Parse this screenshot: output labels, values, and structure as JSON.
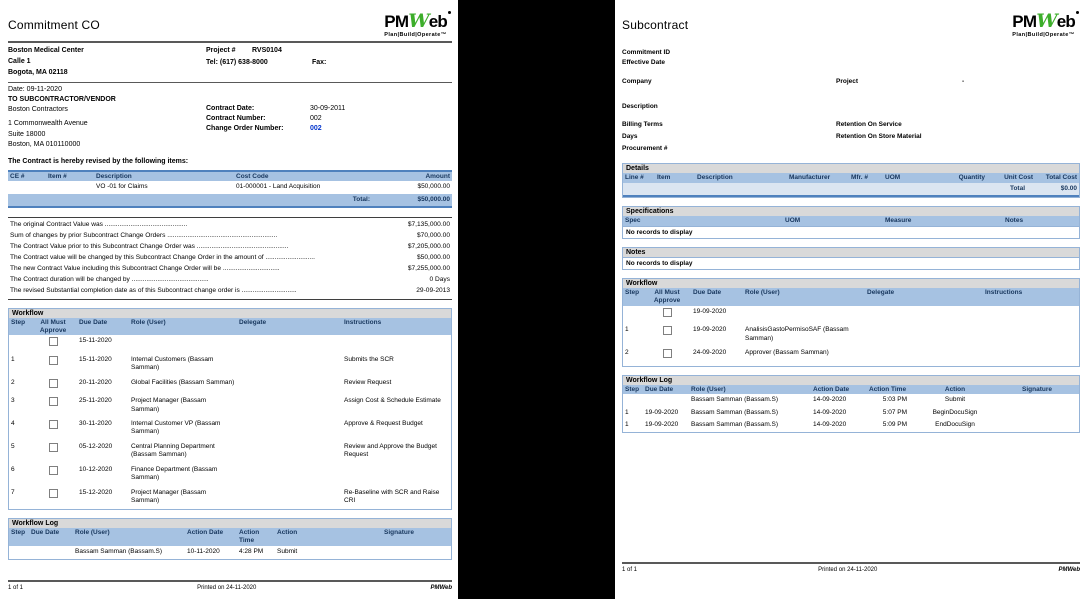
{
  "logo": {
    "pm": "PM",
    "w": "W",
    "eb": "eb",
    "tagline": "Plan|Build|Operate™"
  },
  "left_page": {
    "title": "Commitment CO",
    "owner": {
      "name": "Boston Medical Center",
      "address1": "Calle 1",
      "address2": "Bogota, MA 02118"
    },
    "project": {
      "label": "Project #",
      "number": "RVS0104",
      "tel": "Tel: (617) 638-8000",
      "fax_label": "Fax:"
    },
    "date_line": "Date: 09-11-2020",
    "to_heading": "TO SUBCONTRACTOR/VENDOR",
    "vendor": {
      "name": "Boston Contractors",
      "address1": "1 Commonwealth Avenue",
      "address2": "Suite 18000",
      "address3": "Boston, MA 010110000"
    },
    "contract": {
      "date_label": "Contract Date:",
      "date_value": "30-09-2011",
      "number_label": "Contract Number:",
      "number_value": "002",
      "change_order_label": "Change Order Number:",
      "change_order_value": "002"
    },
    "revision_intro": "The Contract is hereby revised by the following items:",
    "items": {
      "headers": [
        "CE #",
        "Item #",
        "Description",
        "Cost Code",
        "Amount"
      ],
      "rows": [
        [
          "",
          "",
          "VO -01 for Claims",
          "01-000001 - Land Acquisition",
          "$50,000.00"
        ]
      ],
      "total_label": "Total:",
      "total_value": "$50,000.00"
    },
    "summary_rows": [
      [
        "The original Contract Value was .............................................",
        "$7,135,000.00"
      ],
      [
        "Sum of changes by prior Subcontract Change Orders ............................................................",
        "$70,000.00"
      ],
      [
        "The Contract Value prior to this Subcontract Change Order was ..................................................",
        "$7,205,000.00"
      ],
      [
        "The Contract value will be changed by this Subcontract Change Order in the amount of ...........................",
        "$50,000.00"
      ],
      [
        "The new Contract Value including this Subcontract Change Order will be ...............................",
        "$7,255,000.00"
      ],
      [
        "The Contract duration will be changed by ..........................................",
        "0 Days"
      ],
      [
        "The revised Substantial completion date as  of this Subcontract change order is ..............................",
        "29-09-2013"
      ]
    ],
    "workflow": {
      "title": "Workflow",
      "headers": [
        "Step",
        "All Must Approve",
        "Due Date",
        "Role (User)",
        "Delegate",
        "Instructions"
      ],
      "rows": [
        [
          "",
          "",
          "15-11-2020",
          "",
          "",
          ""
        ],
        [
          "1",
          "",
          "15-11-2020",
          "Internal Customers (Bassam Samman)",
          "",
          "Submits the SCR"
        ],
        [
          "2",
          "",
          "20-11-2020",
          "Global Facilities (Bassam Samman)",
          "",
          "Review Request"
        ],
        [
          "3",
          "",
          "25-11-2020",
          "Project Manager (Bassam Samman)",
          "",
          "Assign Cost & Schedule Estimate"
        ],
        [
          "4",
          "",
          "30-11-2020",
          "Internal Customer VP (Bassam Samman)",
          "",
          "Approve & Request Budget"
        ],
        [
          "5",
          "",
          "05-12-2020",
          "Central Planning Department (Bassam Samman)",
          "",
          "Review and Approve the Budget Request"
        ],
        [
          "6",
          "",
          "10-12-2020",
          "Finance Department (Bassam Samman)",
          "",
          ""
        ],
        [
          "7",
          "",
          "15-12-2020",
          "Project Manager (Bassam Samman)",
          "",
          "Re-Baseline with SCR and Raise CRI"
        ]
      ]
    },
    "workflow_log": {
      "title": "Workflow Log",
      "headers": [
        "Step",
        "Due Date",
        "Role (User)",
        "Action Date",
        "Action Time",
        "Action",
        "Signature"
      ],
      "rows": [
        [
          "",
          "",
          "Bassam Samman (Bassam.S)",
          "10-11-2020",
          "4:28 PM",
          "Submit",
          ""
        ]
      ]
    },
    "footer": {
      "page": "1 of 1",
      "printed": "Printed on 24-11-2020",
      "brand": "PMWeb"
    }
  },
  "right_page": {
    "title": "Subcontract",
    "fields": {
      "commitment_id": "Commitment ID",
      "effective_date": "Effective Date",
      "company": "Company",
      "project": "Project",
      "project_value": "-",
      "description": "Description",
      "billing_terms": "Billing Terms",
      "days": "Days",
      "procurement": "Procurement #",
      "retention_service": "Retention On Service",
      "retention_store": "Retention On Store Material"
    },
    "details": {
      "title": "Details",
      "headers": [
        "Line #",
        "Item",
        "Description",
        "Manufacturer",
        "Mfr. #",
        "UOM",
        "Quantity",
        "Unit Cost",
        "Total Cost"
      ],
      "total_label": "Total",
      "total_value": "$0.00"
    },
    "specifications": {
      "title": "Specifications",
      "headers": [
        "Spec",
        "UOM",
        "Measure",
        "Notes"
      ],
      "empty": "No records to display"
    },
    "notes": {
      "title": "Notes",
      "empty": "No records to display"
    },
    "workflow": {
      "title": "Workflow",
      "headers": [
        "Step",
        "All Must Approve",
        "Due Date",
        "Role (User)",
        "Delegate",
        "Instructions"
      ],
      "rows": [
        [
          "",
          "",
          "19-09-2020",
          "",
          "",
          ""
        ],
        [
          "1",
          "",
          "19-09-2020",
          "AnalisisGastoPermisoSAF (Bassam Samman)",
          "",
          ""
        ],
        [
          "2",
          "",
          "24-09-2020",
          "Approver (Bassam Samman)",
          "",
          ""
        ]
      ]
    },
    "workflow_log": {
      "title": "Workflow Log",
      "headers": [
        "Step",
        "Due Date",
        "Role (User)",
        "Action Date",
        "Action Time",
        "Action",
        "Signature"
      ],
      "rows": [
        [
          "",
          "",
          "Bassam Samman (Bassam.S)",
          "14-09-2020",
          "5:03 PM",
          "Submit",
          ""
        ],
        [
          "1",
          "19-09-2020",
          "Bassam Samman (Bassam.S)",
          "14-09-2020",
          "5:07 PM",
          "BeginDocuSign",
          ""
        ],
        [
          "1",
          "19-09-2020",
          "Bassam Samman (Bassam.S)",
          "14-09-2020",
          "5:09 PM",
          "EndDocuSign",
          ""
        ]
      ]
    },
    "footer": {
      "page": "1 of 1",
      "printed": "Printed on 24-11-2020",
      "brand": "PMWeb"
    }
  }
}
